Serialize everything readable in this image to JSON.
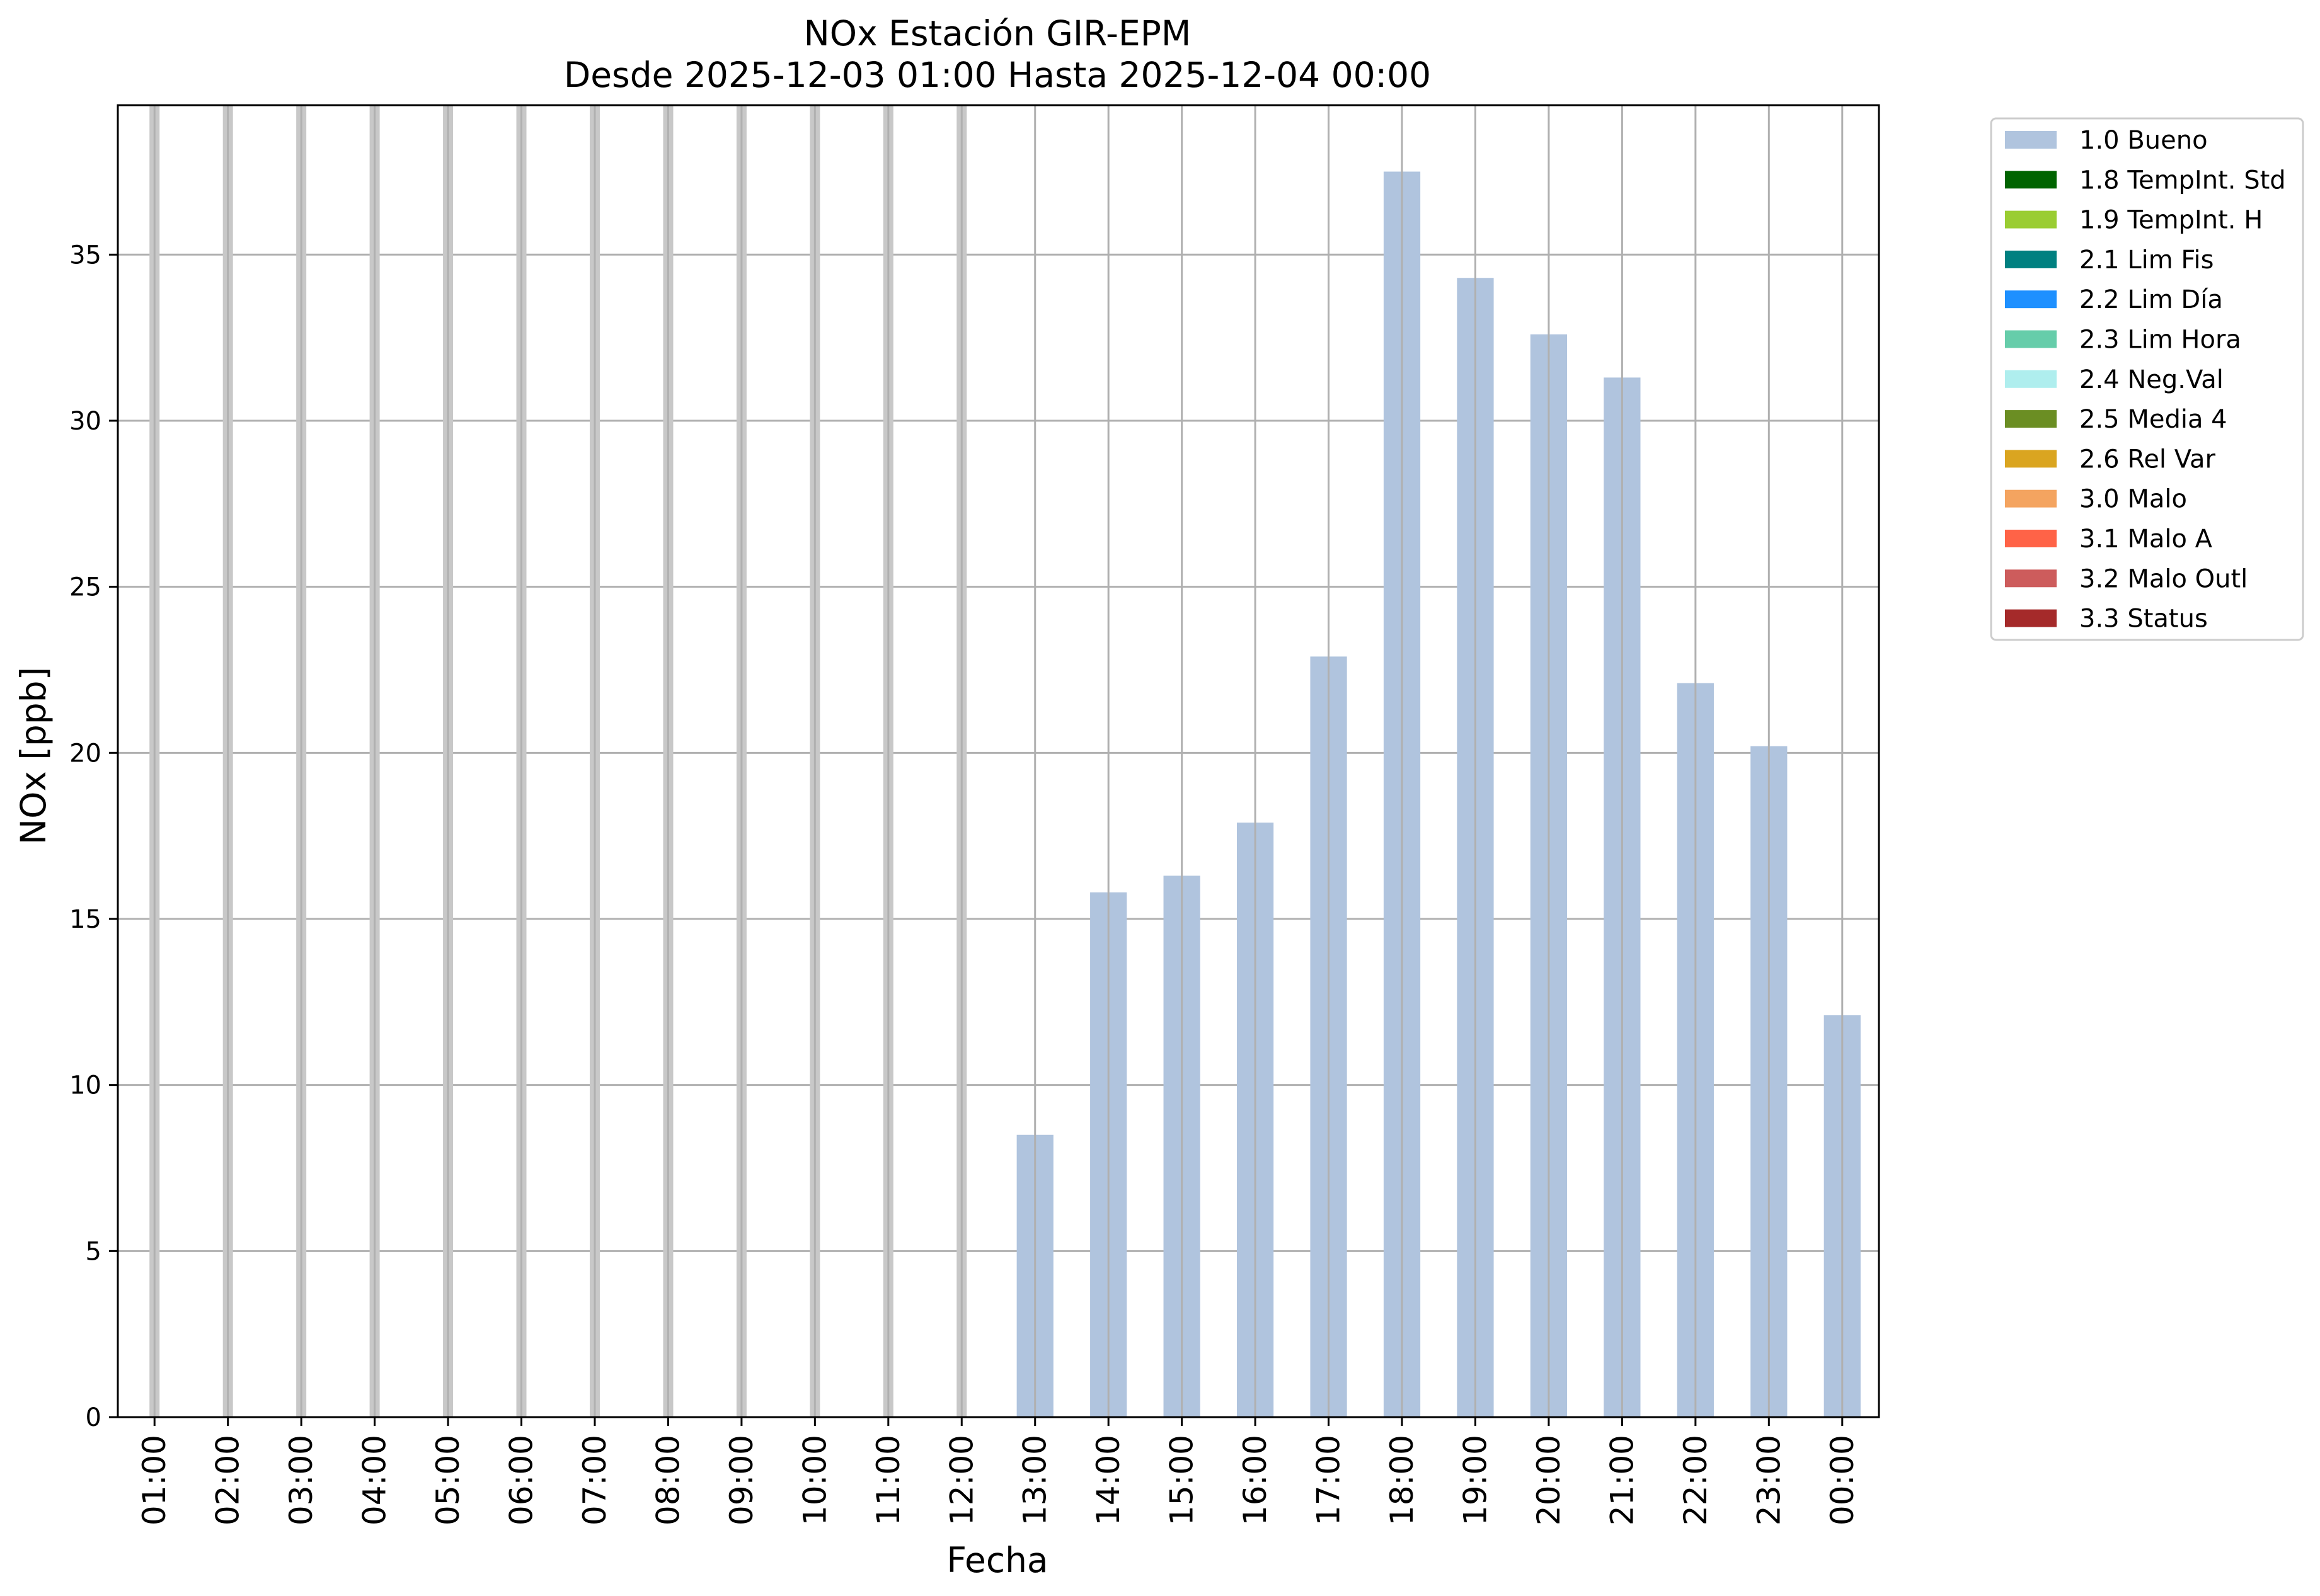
{
  "chart_data": {
    "type": "bar",
    "title": "NOx Estación GIR-EPM",
    "subtitle": "Desde 2025-12-03 01:00 Hasta 2025-12-04 00:00",
    "xlabel": "Fecha",
    "ylabel": "NOx [ppb]",
    "ylim": [
      0,
      39.5
    ],
    "yticks": [
      0,
      5,
      10,
      15,
      20,
      25,
      30,
      35
    ],
    "grid": true,
    "legend_position": "outside-top-right",
    "categories": [
      "01:00",
      "02:00",
      "03:00",
      "04:00",
      "05:00",
      "06:00",
      "07:00",
      "08:00",
      "09:00",
      "10:00",
      "11:00",
      "12:00",
      "13:00",
      "14:00",
      "15:00",
      "16:00",
      "17:00",
      "18:00",
      "19:00",
      "20:00",
      "21:00",
      "22:00",
      "23:00",
      "00:00"
    ],
    "series": [
      {
        "name": "1.0 Bueno",
        "color": "#b0c4de",
        "values": [
          0,
          0,
          0,
          0,
          0,
          0,
          0,
          0,
          0,
          0,
          0,
          0,
          8.5,
          15.8,
          16.3,
          17.9,
          22.9,
          37.5,
          34.3,
          32.6,
          31.3,
          22.1,
          20.2,
          12.1
        ]
      }
    ],
    "legend": [
      {
        "label": "1.0 Bueno",
        "color": "#b0c4de"
      },
      {
        "label": "1.8 TempInt. Std",
        "color": "#006400"
      },
      {
        "label": "1.9 TempInt. H",
        "color": "#9acd32"
      },
      {
        "label": "2.1 Lim Fis",
        "color": "#008080"
      },
      {
        "label": "2.2 Lim Día",
        "color": "#1e90ff"
      },
      {
        "label": "2.3 Lim Hora",
        "color": "#66cdaa"
      },
      {
        "label": "2.4 Neg.Val",
        "color": "#afeeee"
      },
      {
        "label": "2.5 Media 4",
        "color": "#6b8e23"
      },
      {
        "label": "2.6 Rel Var",
        "color": "#daa520"
      },
      {
        "label": "3.0 Malo",
        "color": "#f4a460"
      },
      {
        "label": "3.1 Malo A",
        "color": "#ff6347"
      },
      {
        "label": "3.2 Malo Outl",
        "color": "#cd5c5c"
      },
      {
        "label": "3.3 Status",
        "color": "#a52a2a"
      }
    ]
  }
}
